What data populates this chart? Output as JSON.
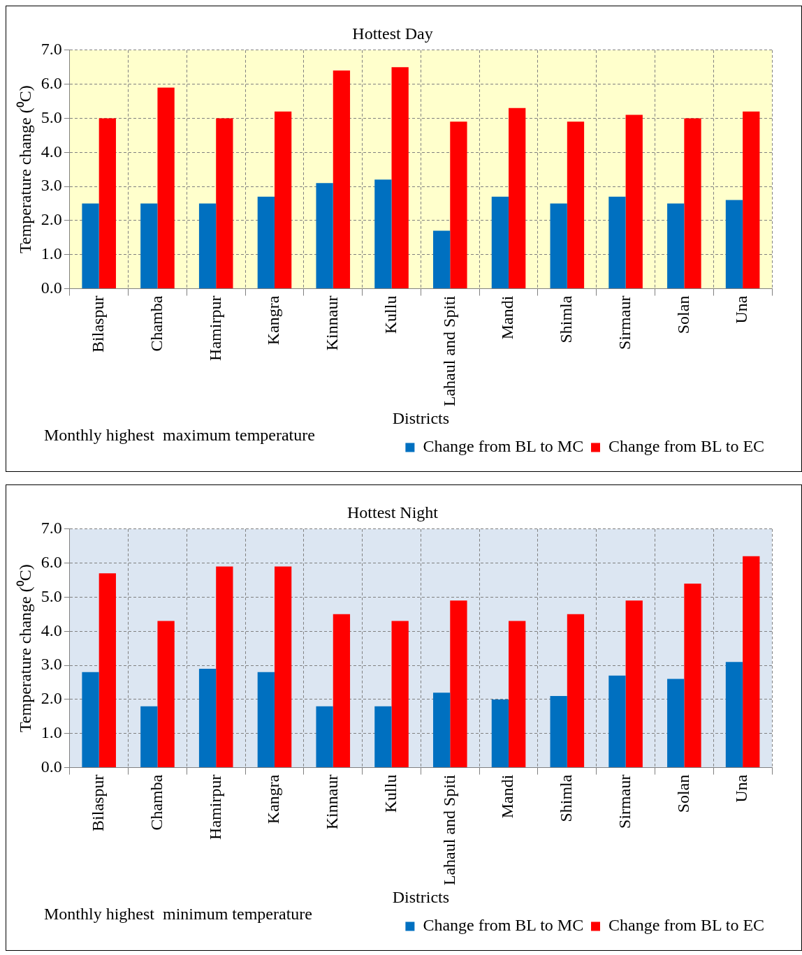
{
  "chart_data": [
    {
      "type": "bar",
      "title": "Hottest Day",
      "xlabel": "Districts",
      "ylabel": "Temperature change (⁰C)",
      "categories": [
        "Bilaspur",
        "Chamba",
        "Hamirpur",
        "Kangra",
        "Kinnaur",
        "Kullu",
        "Lahaul and Spiti",
        "Mandi",
        "Shimla",
        "Sirmaur",
        "Solan",
        "Una"
      ],
      "series": [
        {
          "name": "Change from BL to MC",
          "color": "#0070c0",
          "values": [
            2.5,
            2.5,
            2.5,
            2.7,
            3.1,
            3.2,
            1.7,
            2.7,
            2.5,
            2.7,
            2.5,
            2.6
          ]
        },
        {
          "name": "Change from BL to EC",
          "color": "#ff0000",
          "values": [
            5.0,
            5.9,
            5.0,
            5.2,
            6.4,
            6.5,
            4.9,
            5.3,
            4.9,
            5.1,
            5.0,
            5.2
          ]
        }
      ],
      "ylim": [
        0,
        7
      ],
      "yticks": [
        {
          "value": 0,
          "label": "0.0"
        },
        {
          "value": 1,
          "label": "1.0"
        },
        {
          "value": 2,
          "label": "2.0"
        },
        {
          "value": 3,
          "label": "3.0"
        },
        {
          "value": 4,
          "label": "4.0"
        },
        {
          "value": 5,
          "label": "5.0"
        },
        {
          "value": 6,
          "label": "6.0"
        },
        {
          "value": 7,
          "label": "7.0"
        }
      ],
      "grid": true,
      "legend": "bottom right",
      "annotations": [
        "Monthly highest  maximum temperature"
      ]
    },
    {
      "type": "bar",
      "title": "Hottest Night",
      "xlabel": "Districts",
      "ylabel": "Temperature change (⁰C)",
      "categories": [
        "Bilaspur",
        "Chamba",
        "Hamirpur",
        "Kangra",
        "Kinnaur",
        "Kullu",
        "Lahaul and Spiti",
        "Mandi",
        "Shimla",
        "Sirmaur",
        "Solan",
        "Una"
      ],
      "series": [
        {
          "name": "Change from BL to MC",
          "color": "#0070c0",
          "values": [
            2.8,
            1.8,
            2.9,
            2.8,
            1.8,
            1.8,
            2.2,
            2.0,
            2.1,
            2.7,
            2.6,
            3.1
          ]
        },
        {
          "name": "Change from BL to EC",
          "color": "#ff0000",
          "values": [
            5.7,
            4.3,
            5.9,
            5.9,
            4.5,
            4.3,
            4.9,
            4.3,
            4.5,
            4.9,
            5.4,
            6.2
          ]
        }
      ],
      "ylim": [
        0,
        7
      ],
      "yticks": [
        {
          "value": 0,
          "label": "0.0"
        },
        {
          "value": 1,
          "label": "1.0"
        },
        {
          "value": 2,
          "label": "2.0"
        },
        {
          "value": 3,
          "label": "3.0"
        },
        {
          "value": 4,
          "label": "4.0"
        },
        {
          "value": 5,
          "label": "5.0"
        },
        {
          "value": 6,
          "label": "6.0"
        },
        {
          "value": 7,
          "label": "7.0"
        }
      ],
      "grid": true,
      "legend": "bottom right",
      "annotations": [
        "Monthly highest  minimum temperature"
      ]
    }
  ]
}
